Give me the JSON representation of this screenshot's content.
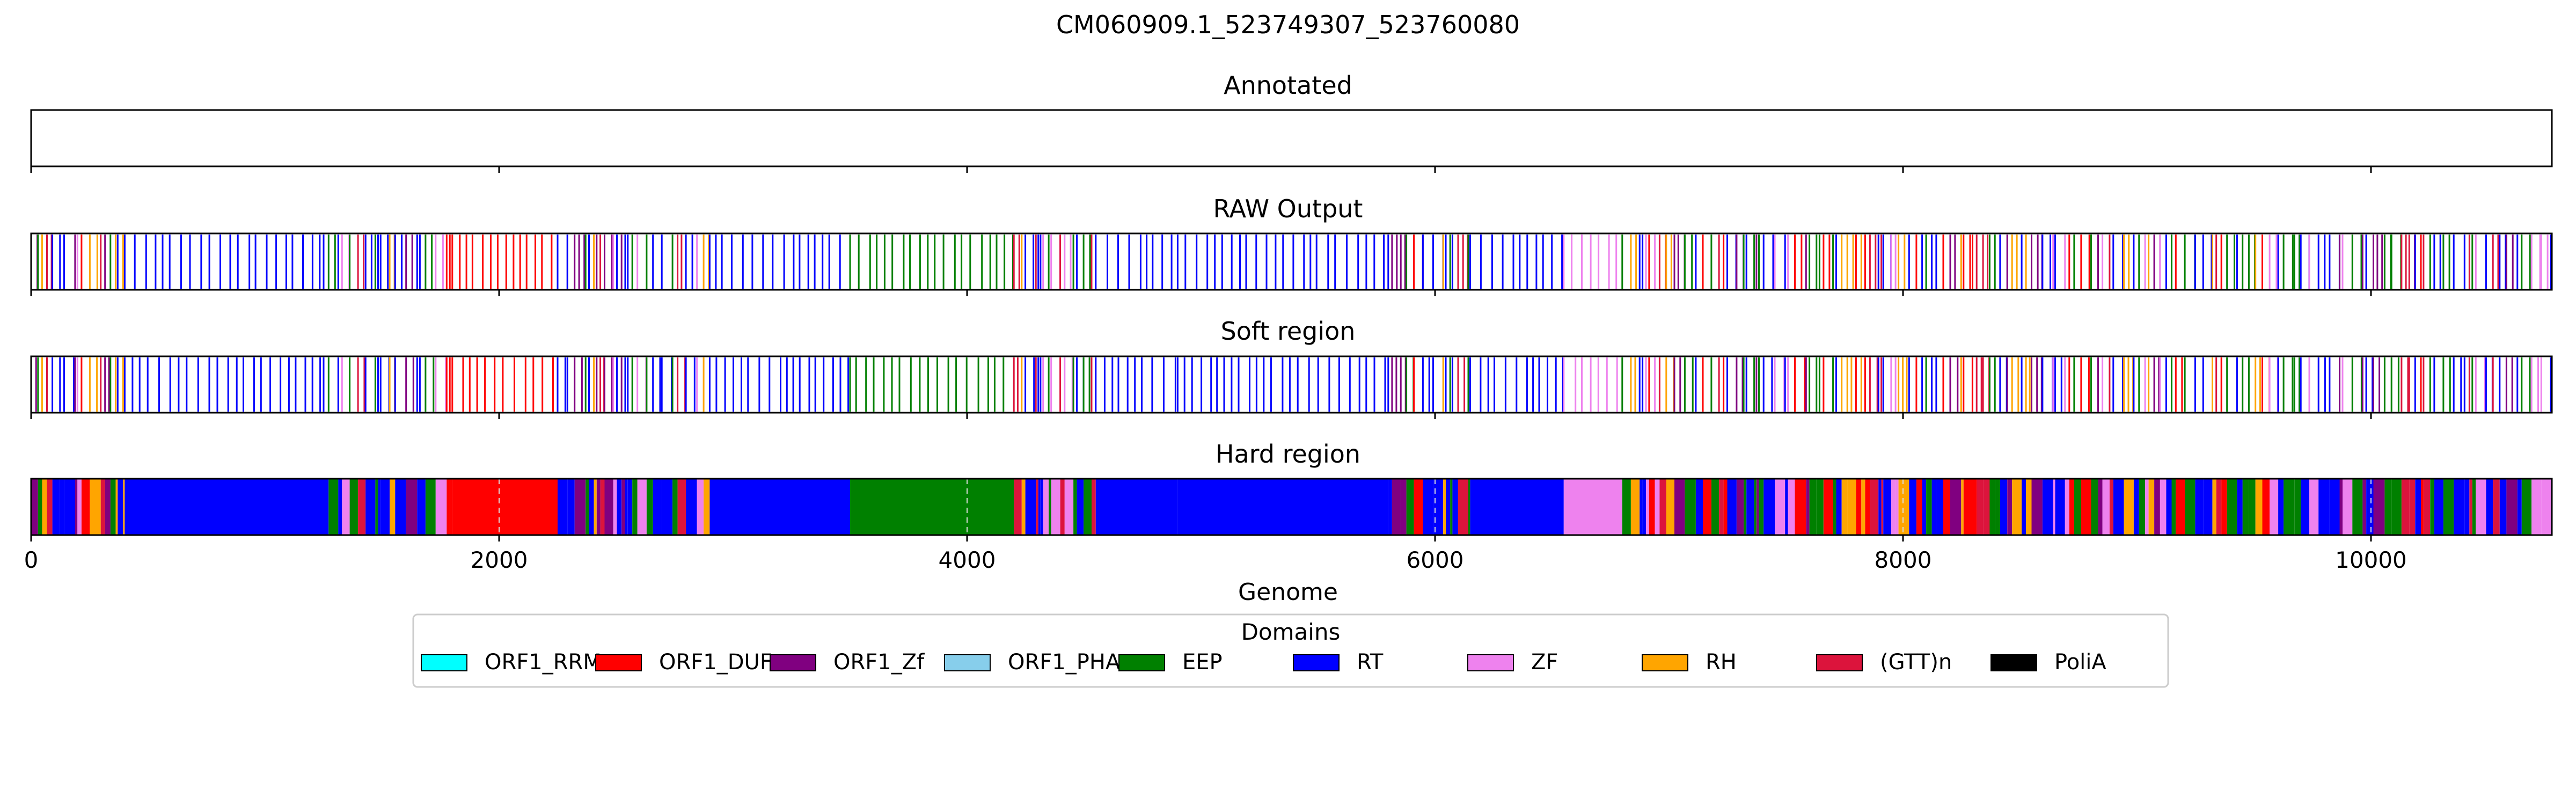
{
  "chart_data": {
    "type": "track",
    "title": "CM060909.1_523749307_523760080",
    "xlabel": "Genome",
    "xlim": [
      0,
      10773
    ],
    "xticks": [
      0,
      2000,
      4000,
      6000,
      8000,
      10000
    ],
    "xtick_labels": [
      "0",
      "2000",
      "4000",
      "6000",
      "8000",
      "10000"
    ],
    "panels": [
      {
        "title": "Annotated",
        "style": "empty"
      },
      {
        "title": "RAW Output",
        "style": "lines"
      },
      {
        "title": "Soft region",
        "style": "lines"
      },
      {
        "title": "Hard region",
        "style": "filled",
        "grid": true
      }
    ],
    "legend": {
      "title": "Domains",
      "placement": "bottom-center",
      "entries": [
        {
          "name": "ORF1_RRM",
          "color": "#00ffff"
        },
        {
          "name": "ORF1_DUF",
          "color": "#ff0000"
        },
        {
          "name": "ORF1_Zf",
          "color": "#800080"
        },
        {
          "name": "ORF1_PHA",
          "color": "#87ceeb"
        },
        {
          "name": "EEP",
          "color": "#008000"
        },
        {
          "name": "RT",
          "color": "#0000ff"
        },
        {
          "name": "ZF",
          "color": "#ee82ee"
        },
        {
          "name": "RH",
          "color": "#ffa500"
        },
        {
          "name": "(GTT)n",
          "color": "#dc143c"
        },
        {
          "name": "PoliA",
          "color": "#000000"
        }
      ]
    },
    "segments": [
      {
        "start": 0,
        "end": 400,
        "domain": "mix"
      },
      {
        "start": 400,
        "end": 1250,
        "domain": "RT"
      },
      {
        "start": 1250,
        "end": 1800,
        "domain": "mix"
      },
      {
        "start": 1800,
        "end": 2250,
        "domain": "ORF1_DUF"
      },
      {
        "start": 2250,
        "end": 2550,
        "domain": "mix"
      },
      {
        "start": 2550,
        "end": 2900,
        "domain": "mix"
      },
      {
        "start": 2900,
        "end": 3500,
        "domain": "RT"
      },
      {
        "start": 3500,
        "end": 4200,
        "domain": "EEP"
      },
      {
        "start": 4200,
        "end": 4550,
        "domain": "mix"
      },
      {
        "start": 4550,
        "end": 4900,
        "domain": "RT"
      },
      {
        "start": 4900,
        "end": 5800,
        "domain": "RT"
      },
      {
        "start": 5800,
        "end": 6150,
        "domain": "mix"
      },
      {
        "start": 6150,
        "end": 6550,
        "domain": "RT"
      },
      {
        "start": 6550,
        "end": 6800,
        "domain": "ZF"
      },
      {
        "start": 6800,
        "end": 7600,
        "domain": "mix"
      },
      {
        "start": 7600,
        "end": 9700,
        "domain": "mix"
      },
      {
        "start": 9700,
        "end": 10773,
        "domain": "mix"
      }
    ]
  }
}
